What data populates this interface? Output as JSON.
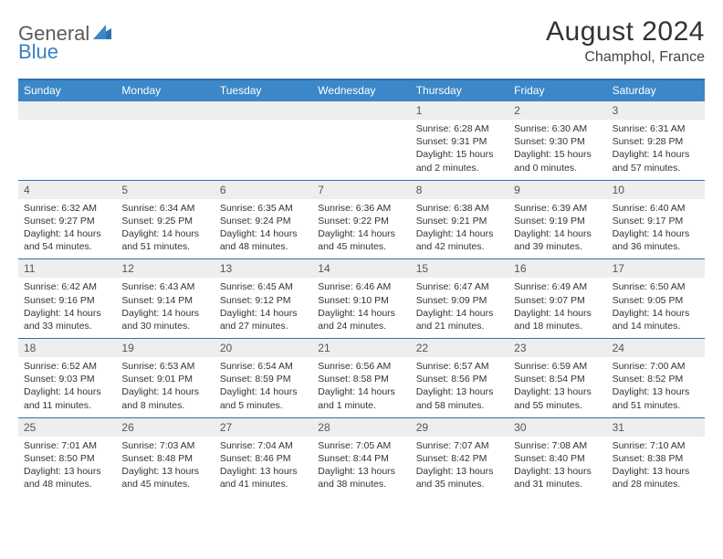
{
  "logo": {
    "general": "General",
    "blue": "Blue"
  },
  "title": "August 2024",
  "location": "Champhol, France",
  "day_headers": [
    "Sunday",
    "Monday",
    "Tuesday",
    "Wednesday",
    "Thursday",
    "Friday",
    "Saturday"
  ],
  "colors": {
    "header_blue": "#3b87c8",
    "rule_blue": "#2f6fab",
    "num_bg": "#eeeeee",
    "text": "#333333",
    "logo_blue": "#3b7fc4",
    "logo_gray": "#5a5a5a"
  },
  "weeks": [
    {
      "nums": [
        "",
        "",
        "",
        "",
        "1",
        "2",
        "3"
      ],
      "details": [
        {},
        {},
        {},
        {},
        {
          "sunrise": "Sunrise: 6:28 AM",
          "sunset": "Sunset: 9:31 PM",
          "daylight1": "Daylight: 15 hours",
          "daylight2": "and 2 minutes."
        },
        {
          "sunrise": "Sunrise: 6:30 AM",
          "sunset": "Sunset: 9:30 PM",
          "daylight1": "Daylight: 15 hours",
          "daylight2": "and 0 minutes."
        },
        {
          "sunrise": "Sunrise: 6:31 AM",
          "sunset": "Sunset: 9:28 PM",
          "daylight1": "Daylight: 14 hours",
          "daylight2": "and 57 minutes."
        }
      ]
    },
    {
      "nums": [
        "4",
        "5",
        "6",
        "7",
        "8",
        "9",
        "10"
      ],
      "details": [
        {
          "sunrise": "Sunrise: 6:32 AM",
          "sunset": "Sunset: 9:27 PM",
          "daylight1": "Daylight: 14 hours",
          "daylight2": "and 54 minutes."
        },
        {
          "sunrise": "Sunrise: 6:34 AM",
          "sunset": "Sunset: 9:25 PM",
          "daylight1": "Daylight: 14 hours",
          "daylight2": "and 51 minutes."
        },
        {
          "sunrise": "Sunrise: 6:35 AM",
          "sunset": "Sunset: 9:24 PM",
          "daylight1": "Daylight: 14 hours",
          "daylight2": "and 48 minutes."
        },
        {
          "sunrise": "Sunrise: 6:36 AM",
          "sunset": "Sunset: 9:22 PM",
          "daylight1": "Daylight: 14 hours",
          "daylight2": "and 45 minutes."
        },
        {
          "sunrise": "Sunrise: 6:38 AM",
          "sunset": "Sunset: 9:21 PM",
          "daylight1": "Daylight: 14 hours",
          "daylight2": "and 42 minutes."
        },
        {
          "sunrise": "Sunrise: 6:39 AM",
          "sunset": "Sunset: 9:19 PM",
          "daylight1": "Daylight: 14 hours",
          "daylight2": "and 39 minutes."
        },
        {
          "sunrise": "Sunrise: 6:40 AM",
          "sunset": "Sunset: 9:17 PM",
          "daylight1": "Daylight: 14 hours",
          "daylight2": "and 36 minutes."
        }
      ]
    },
    {
      "nums": [
        "11",
        "12",
        "13",
        "14",
        "15",
        "16",
        "17"
      ],
      "details": [
        {
          "sunrise": "Sunrise: 6:42 AM",
          "sunset": "Sunset: 9:16 PM",
          "daylight1": "Daylight: 14 hours",
          "daylight2": "and 33 minutes."
        },
        {
          "sunrise": "Sunrise: 6:43 AM",
          "sunset": "Sunset: 9:14 PM",
          "daylight1": "Daylight: 14 hours",
          "daylight2": "and 30 minutes."
        },
        {
          "sunrise": "Sunrise: 6:45 AM",
          "sunset": "Sunset: 9:12 PM",
          "daylight1": "Daylight: 14 hours",
          "daylight2": "and 27 minutes."
        },
        {
          "sunrise": "Sunrise: 6:46 AM",
          "sunset": "Sunset: 9:10 PM",
          "daylight1": "Daylight: 14 hours",
          "daylight2": "and 24 minutes."
        },
        {
          "sunrise": "Sunrise: 6:47 AM",
          "sunset": "Sunset: 9:09 PM",
          "daylight1": "Daylight: 14 hours",
          "daylight2": "and 21 minutes."
        },
        {
          "sunrise": "Sunrise: 6:49 AM",
          "sunset": "Sunset: 9:07 PM",
          "daylight1": "Daylight: 14 hours",
          "daylight2": "and 18 minutes."
        },
        {
          "sunrise": "Sunrise: 6:50 AM",
          "sunset": "Sunset: 9:05 PM",
          "daylight1": "Daylight: 14 hours",
          "daylight2": "and 14 minutes."
        }
      ]
    },
    {
      "nums": [
        "18",
        "19",
        "20",
        "21",
        "22",
        "23",
        "24"
      ],
      "details": [
        {
          "sunrise": "Sunrise: 6:52 AM",
          "sunset": "Sunset: 9:03 PM",
          "daylight1": "Daylight: 14 hours",
          "daylight2": "and 11 minutes."
        },
        {
          "sunrise": "Sunrise: 6:53 AM",
          "sunset": "Sunset: 9:01 PM",
          "daylight1": "Daylight: 14 hours",
          "daylight2": "and 8 minutes."
        },
        {
          "sunrise": "Sunrise: 6:54 AM",
          "sunset": "Sunset: 8:59 PM",
          "daylight1": "Daylight: 14 hours",
          "daylight2": "and 5 minutes."
        },
        {
          "sunrise": "Sunrise: 6:56 AM",
          "sunset": "Sunset: 8:58 PM",
          "daylight1": "Daylight: 14 hours",
          "daylight2": "and 1 minute."
        },
        {
          "sunrise": "Sunrise: 6:57 AM",
          "sunset": "Sunset: 8:56 PM",
          "daylight1": "Daylight: 13 hours",
          "daylight2": "and 58 minutes."
        },
        {
          "sunrise": "Sunrise: 6:59 AM",
          "sunset": "Sunset: 8:54 PM",
          "daylight1": "Daylight: 13 hours",
          "daylight2": "and 55 minutes."
        },
        {
          "sunrise": "Sunrise: 7:00 AM",
          "sunset": "Sunset: 8:52 PM",
          "daylight1": "Daylight: 13 hours",
          "daylight2": "and 51 minutes."
        }
      ]
    },
    {
      "nums": [
        "25",
        "26",
        "27",
        "28",
        "29",
        "30",
        "31"
      ],
      "details": [
        {
          "sunrise": "Sunrise: 7:01 AM",
          "sunset": "Sunset: 8:50 PM",
          "daylight1": "Daylight: 13 hours",
          "daylight2": "and 48 minutes."
        },
        {
          "sunrise": "Sunrise: 7:03 AM",
          "sunset": "Sunset: 8:48 PM",
          "daylight1": "Daylight: 13 hours",
          "daylight2": "and 45 minutes."
        },
        {
          "sunrise": "Sunrise: 7:04 AM",
          "sunset": "Sunset: 8:46 PM",
          "daylight1": "Daylight: 13 hours",
          "daylight2": "and 41 minutes."
        },
        {
          "sunrise": "Sunrise: 7:05 AM",
          "sunset": "Sunset: 8:44 PM",
          "daylight1": "Daylight: 13 hours",
          "daylight2": "and 38 minutes."
        },
        {
          "sunrise": "Sunrise: 7:07 AM",
          "sunset": "Sunset: 8:42 PM",
          "daylight1": "Daylight: 13 hours",
          "daylight2": "and 35 minutes."
        },
        {
          "sunrise": "Sunrise: 7:08 AM",
          "sunset": "Sunset: 8:40 PM",
          "daylight1": "Daylight: 13 hours",
          "daylight2": "and 31 minutes."
        },
        {
          "sunrise": "Sunrise: 7:10 AM",
          "sunset": "Sunset: 8:38 PM",
          "daylight1": "Daylight: 13 hours",
          "daylight2": "and 28 minutes."
        }
      ]
    }
  ]
}
